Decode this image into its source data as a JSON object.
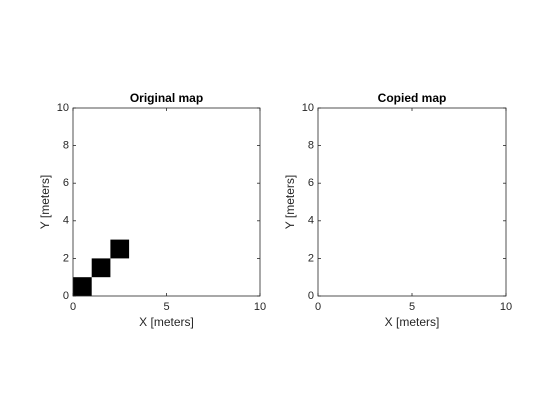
{
  "chart_data": [
    {
      "type": "occupancy",
      "title": "Original map",
      "xlabel": "X [meters]",
      "ylabel": "Y [meters]",
      "xlim": [
        0,
        10
      ],
      "ylim": [
        0,
        10
      ],
      "xticks": [
        0,
        5,
        10
      ],
      "yticks": [
        0,
        2,
        4,
        6,
        8,
        10
      ],
      "color": "#000000",
      "cells": [
        {
          "x": [
            0,
            1
          ],
          "y": [
            0,
            1
          ]
        },
        {
          "x": [
            1,
            2
          ],
          "y": [
            1,
            2
          ]
        },
        {
          "x": [
            2,
            3
          ],
          "y": [
            2,
            3
          ]
        }
      ]
    },
    {
      "type": "occupancy",
      "title": "Copied map",
      "xlabel": "X [meters]",
      "ylabel": "Y [meters]",
      "xlim": [
        0,
        10
      ],
      "ylim": [
        0,
        10
      ],
      "xticks": [
        0,
        5,
        10
      ],
      "yticks": [
        0,
        2,
        4,
        6,
        8,
        10
      ],
      "color": "#000000",
      "cells": []
    }
  ]
}
